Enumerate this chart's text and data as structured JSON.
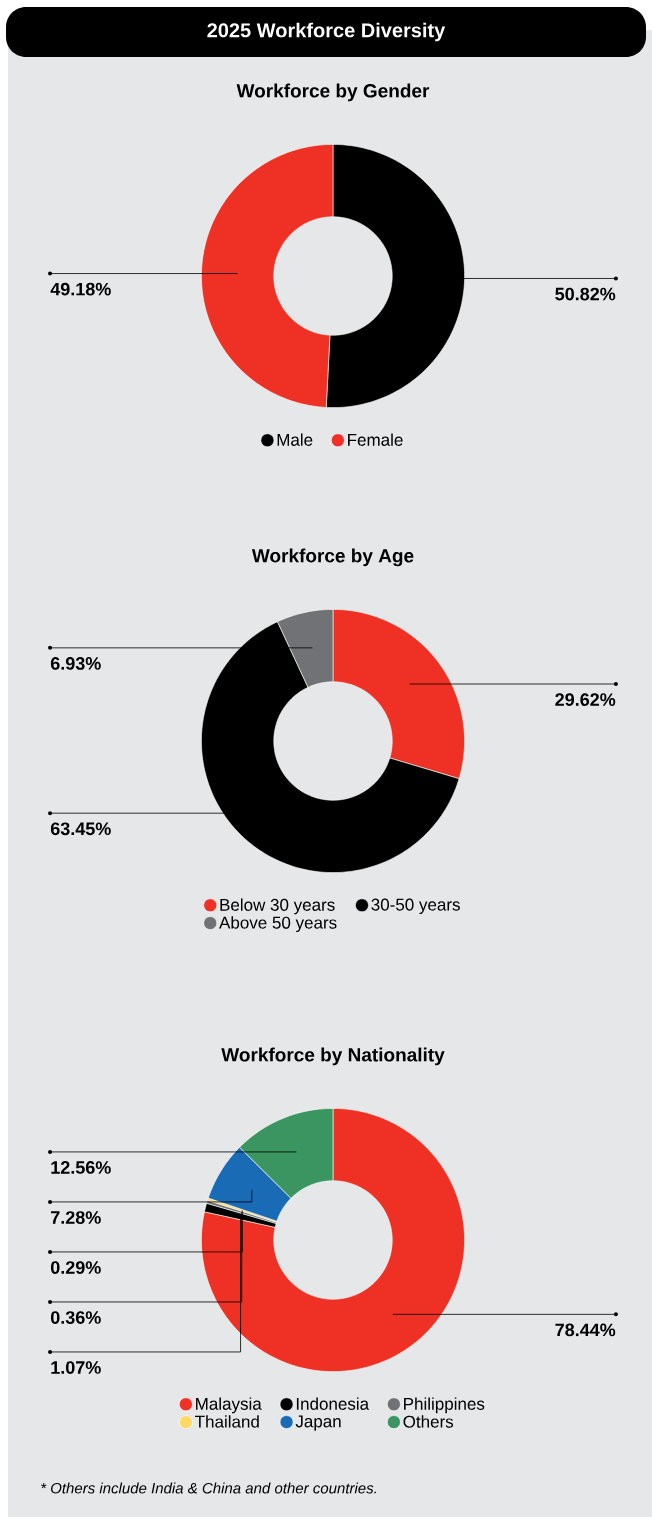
{
  "chart_data": [
    {
      "type": "donut",
      "title": "2025 Workforce Diversity",
      "subtitle": "Workforce by Gender",
      "categories": [
        "Male",
        "Female"
      ],
      "values": [
        50.82,
        49.18
      ],
      "value_labels": [
        "50.82%",
        "49.18%"
      ],
      "colors": [
        "#000000",
        "#ee3124"
      ],
      "legend": "bottom"
    },
    {
      "type": "donut",
      "title": "Workforce by Age",
      "categories": [
        "Below 30 years",
        "30-50 years",
        "Above 50 years"
      ],
      "values": [
        29.62,
        63.45,
        6.93
      ],
      "value_labels": [
        "29.62%",
        "63.45%",
        "6.93%"
      ],
      "colors": [
        "#ee3124",
        "#000000",
        "#717275"
      ],
      "legend": "bottom"
    },
    {
      "type": "donut",
      "title": "Workforce by Nationality",
      "categories": [
        "Malaysia",
        "Indonesia",
        "Philippines",
        "Thailand",
        "Japan",
        "Others"
      ],
      "values": [
        78.44,
        1.07,
        0.36,
        0.29,
        7.28,
        12.56
      ],
      "value_labels": [
        "78.44%",
        "1.07%",
        "0.36%",
        "0.29%",
        "7.28%",
        "12.56%"
      ],
      "colors": [
        "#ee3124",
        "#000000",
        "#717275",
        "#ffd965",
        "#1a6bb5",
        "#3a9560"
      ],
      "legend": "bottom",
      "annotations": [
        "*   Others include India & China and other countries."
      ]
    }
  ]
}
